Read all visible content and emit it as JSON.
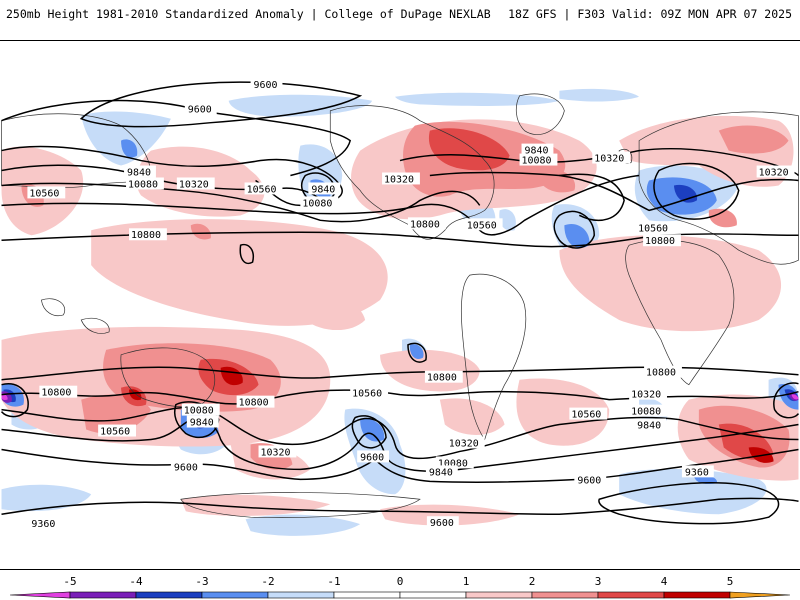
{
  "header": {
    "left": "250mb Height 1981-2010 Standardized Anomaly | College of DuPage NEXLAB",
    "right": "18Z GFS | F303 Valid: 09Z MON APR 07 2025"
  },
  "colors": {
    "neg5": "#e040e0",
    "neg4": "#7a1fb8",
    "neg3": "#1c3fc0",
    "neg2": "#5a8ef0",
    "neg1": "#c6dcf8",
    "zero": "#ffffff",
    "pos1": "#f8c8c8",
    "pos2": "#f09090",
    "pos3": "#e04848",
    "pos4": "#c00000",
    "pos5": "#f0a020"
  },
  "colorbar": {
    "ticks": [
      "-5",
      "-4",
      "-3",
      "-2",
      "-1",
      "0",
      "1",
      "2",
      "3",
      "4",
      "5"
    ]
  },
  "contour_labels": [
    {
      "id": "l1",
      "text": "9600"
    },
    {
      "id": "l2",
      "text": "9600"
    },
    {
      "id": "l3",
      "text": "9840"
    },
    {
      "id": "l4",
      "text": "10080"
    },
    {
      "id": "l5",
      "text": "10320"
    },
    {
      "id": "l6",
      "text": "10560"
    },
    {
      "id": "l7",
      "text": "10560"
    },
    {
      "id": "l8",
      "text": "9840"
    },
    {
      "id": "l9",
      "text": "10080"
    },
    {
      "id": "l10",
      "text": "10320"
    },
    {
      "id": "l11",
      "text": "10800"
    },
    {
      "id": "l12",
      "text": "9840"
    },
    {
      "id": "l13",
      "text": "10080"
    },
    {
      "id": "l14",
      "text": "10320"
    },
    {
      "id": "l15",
      "text": "10560"
    },
    {
      "id": "l16",
      "text": "10800"
    },
    {
      "id": "l17",
      "text": "10560"
    },
    {
      "id": "l18",
      "text": "10800"
    },
    {
      "id": "l19",
      "text": "10320"
    },
    {
      "id": "l20",
      "text": "10800"
    },
    {
      "id": "l21",
      "text": "10560"
    },
    {
      "id": "l22",
      "text": "10800"
    },
    {
      "id": "l23",
      "text": "10080"
    },
    {
      "id": "l24",
      "text": "9840"
    },
    {
      "id": "l25",
      "text": "10320"
    },
    {
      "id": "l26",
      "text": "9600"
    },
    {
      "id": "l27",
      "text": "10560"
    },
    {
      "id": "l28",
      "text": "9600"
    },
    {
      "id": "l29",
      "text": "10320"
    },
    {
      "id": "l30",
      "text": "10080"
    },
    {
      "id": "l31",
      "text": "9840"
    },
    {
      "id": "l32",
      "text": "10560"
    },
    {
      "id": "l33",
      "text": "10800"
    },
    {
      "id": "l34",
      "text": "10320"
    },
    {
      "id": "l35",
      "text": "10080"
    },
    {
      "id": "l36",
      "text": "9840"
    },
    {
      "id": "l37",
      "text": "9600"
    },
    {
      "id": "l38",
      "text": "9360"
    },
    {
      "id": "l39",
      "text": "9360"
    },
    {
      "id": "l40",
      "text": "9600"
    }
  ]
}
